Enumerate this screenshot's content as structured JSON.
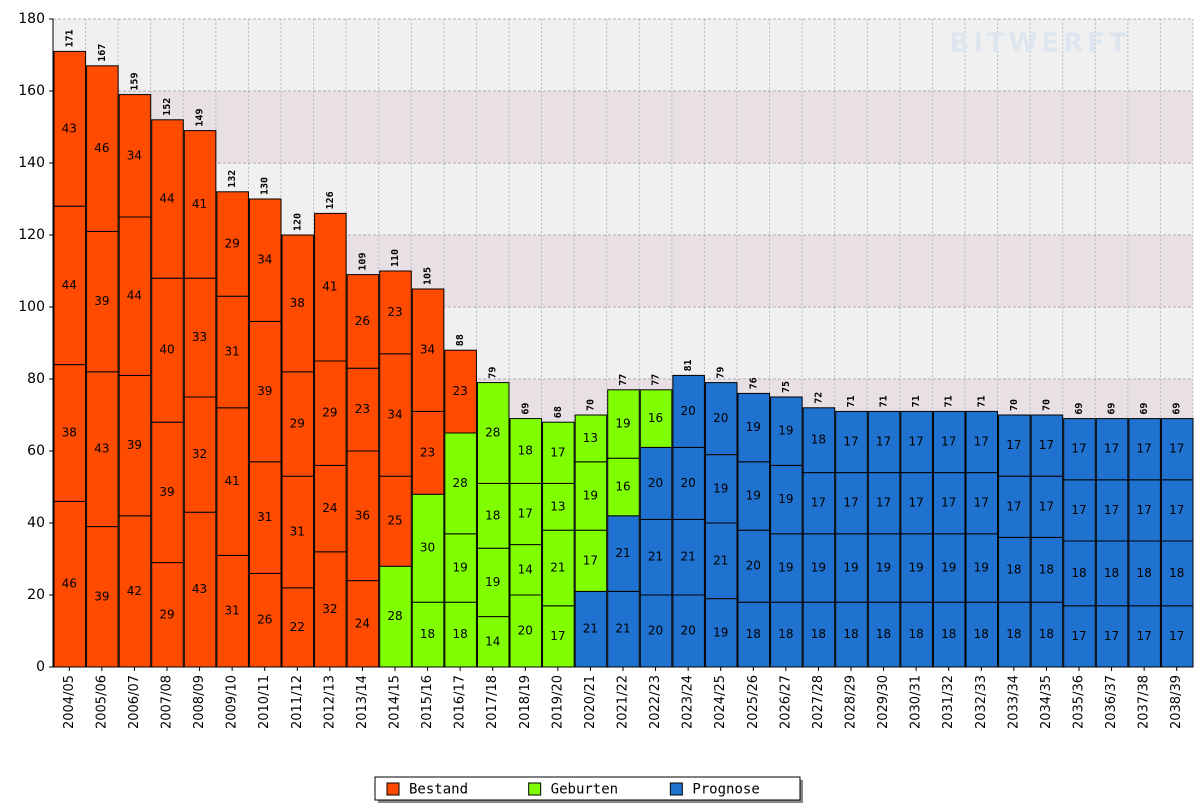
{
  "chart_data": {
    "type": "bar",
    "stacked": true,
    "watermark": "BITWERFT",
    "ylim": [
      0,
      180
    ],
    "yticks": [
      0,
      20,
      40,
      60,
      80,
      100,
      120,
      140,
      160,
      180
    ],
    "grid": true,
    "series": [
      {
        "name": "Bestand",
        "color": "#ff4b00"
      },
      {
        "name": "Geburten",
        "color": "#80ff00"
      },
      {
        "name": "Prognose",
        "color": "#1f72cf"
      }
    ],
    "legend": "bottom",
    "bars": [
      {
        "category": "2004/05",
        "total": 171,
        "segments": [
          {
            "value": 46,
            "series": 0
          },
          {
            "value": 38,
            "series": 0
          },
          {
            "value": 44,
            "series": 0
          },
          {
            "value": 43,
            "series": 0
          }
        ]
      },
      {
        "category": "2005/06",
        "total": 167,
        "segments": [
          {
            "value": 39,
            "series": 0
          },
          {
            "value": 43,
            "series": 0
          },
          {
            "value": 39,
            "series": 0
          },
          {
            "value": 46,
            "series": 0
          }
        ]
      },
      {
        "category": "2006/07",
        "total": 159,
        "segments": [
          {
            "value": 42,
            "series": 0
          },
          {
            "value": 39,
            "series": 0
          },
          {
            "value": 44,
            "series": 0
          },
          {
            "value": 34,
            "series": 0
          }
        ]
      },
      {
        "category": "2007/08",
        "total": 152,
        "segments": [
          {
            "value": 29,
            "series": 0
          },
          {
            "value": 39,
            "series": 0
          },
          {
            "value": 40,
            "series": 0
          },
          {
            "value": 44,
            "series": 0
          }
        ]
      },
      {
        "category": "2008/09",
        "total": 149,
        "segments": [
          {
            "value": 43,
            "series": 0
          },
          {
            "value": 32,
            "series": 0
          },
          {
            "value": 33,
            "series": 0
          },
          {
            "value": 41,
            "series": 0
          }
        ]
      },
      {
        "category": "2009/10",
        "total": 132,
        "segments": [
          {
            "value": 31,
            "series": 0
          },
          {
            "value": 41,
            "series": 0
          },
          {
            "value": 31,
            "series": 0
          },
          {
            "value": 29,
            "series": 0
          }
        ]
      },
      {
        "category": "2010/11",
        "total": 130,
        "segments": [
          {
            "value": 26,
            "series": 0
          },
          {
            "value": 31,
            "series": 0
          },
          {
            "value": 39,
            "series": 0
          },
          {
            "value": 34,
            "series": 0
          }
        ]
      },
      {
        "category": "2011/12",
        "total": 120,
        "segments": [
          {
            "value": 22,
            "series": 0
          },
          {
            "value": 31,
            "series": 0
          },
          {
            "value": 29,
            "series": 0
          },
          {
            "value": 38,
            "series": 0
          }
        ]
      },
      {
        "category": "2012/13",
        "total": 126,
        "segments": [
          {
            "value": 32,
            "series": 0
          },
          {
            "value": 24,
            "series": 0
          },
          {
            "value": 29,
            "series": 0
          },
          {
            "value": 41,
            "series": 0
          }
        ]
      },
      {
        "category": "2013/14",
        "total": 109,
        "segments": [
          {
            "value": 24,
            "series": 0
          },
          {
            "value": 36,
            "series": 0
          },
          {
            "value": 23,
            "series": 0
          },
          {
            "value": 26,
            "series": 0
          }
        ]
      },
      {
        "category": "2014/15",
        "total": 110,
        "segments": [
          {
            "value": 28,
            "series": 1
          },
          {
            "value": 25,
            "series": 0
          },
          {
            "value": 34,
            "series": 0
          },
          {
            "value": 23,
            "series": 0
          }
        ]
      },
      {
        "category": "2015/16",
        "total": 105,
        "segments": [
          {
            "value": 18,
            "series": 1
          },
          {
            "value": 30,
            "series": 1
          },
          {
            "value": 23,
            "series": 0
          },
          {
            "value": 34,
            "series": 0
          }
        ]
      },
      {
        "category": "2016/17",
        "total": 88,
        "segments": [
          {
            "value": 18,
            "series": 1
          },
          {
            "value": 19,
            "series": 1
          },
          {
            "value": 28,
            "series": 1
          },
          {
            "value": 23,
            "series": 0
          }
        ]
      },
      {
        "category": "2017/18",
        "total": 79,
        "segments": [
          {
            "value": 14,
            "series": 1
          },
          {
            "value": 19,
            "series": 1
          },
          {
            "value": 18,
            "series": 1
          },
          {
            "value": 28,
            "series": 1
          }
        ]
      },
      {
        "category": "2018/19",
        "total": 69,
        "segments": [
          {
            "value": 20,
            "series": 1
          },
          {
            "value": 14,
            "series": 1
          },
          {
            "value": 17,
            "series": 1
          },
          {
            "value": 18,
            "series": 1
          }
        ]
      },
      {
        "category": "2019/20",
        "total": 68,
        "segments": [
          {
            "value": 17,
            "series": 1
          },
          {
            "value": 21,
            "series": 1
          },
          {
            "value": 13,
            "series": 1
          },
          {
            "value": 17,
            "series": 1
          }
        ]
      },
      {
        "category": "2020/21",
        "total": 70,
        "segments": [
          {
            "value": 21,
            "series": 2
          },
          {
            "value": 17,
            "series": 1
          },
          {
            "value": 19,
            "series": 1
          },
          {
            "value": 13,
            "series": 1
          }
        ]
      },
      {
        "category": "2021/22",
        "total": 77,
        "segments": [
          {
            "value": 21,
            "series": 2
          },
          {
            "value": 21,
            "series": 2
          },
          {
            "value": 16,
            "series": 1
          },
          {
            "value": 19,
            "series": 1
          }
        ]
      },
      {
        "category": "2022/23",
        "total": 77,
        "segments": [
          {
            "value": 20,
            "series": 2
          },
          {
            "value": 21,
            "series": 2
          },
          {
            "value": 20,
            "series": 2
          },
          {
            "value": 16,
            "series": 1
          }
        ]
      },
      {
        "category": "2023/24",
        "total": 81,
        "segments": [
          {
            "value": 20,
            "series": 2
          },
          {
            "value": 21,
            "series": 2
          },
          {
            "value": 20,
            "series": 2
          },
          {
            "value": 20,
            "series": 2
          }
        ]
      },
      {
        "category": "2024/25",
        "total": 79,
        "segments": [
          {
            "value": 19,
            "series": 2
          },
          {
            "value": 21,
            "series": 2
          },
          {
            "value": 19,
            "series": 2
          },
          {
            "value": 20,
            "series": 2
          }
        ]
      },
      {
        "category": "2025/26",
        "total": 76,
        "segments": [
          {
            "value": 18,
            "series": 2
          },
          {
            "value": 20,
            "series": 2
          },
          {
            "value": 19,
            "series": 2
          },
          {
            "value": 19,
            "series": 2
          }
        ]
      },
      {
        "category": "2026/27",
        "total": 75,
        "segments": [
          {
            "value": 18,
            "series": 2
          },
          {
            "value": 19,
            "series": 2
          },
          {
            "value": 19,
            "series": 2
          },
          {
            "value": 19,
            "series": 2
          }
        ]
      },
      {
        "category": "2027/28",
        "total": 72,
        "segments": [
          {
            "value": 18,
            "series": 2
          },
          {
            "value": 19,
            "series": 2
          },
          {
            "value": 17,
            "series": 2
          },
          {
            "value": 18,
            "series": 2
          }
        ]
      },
      {
        "category": "2028/29",
        "total": 71,
        "segments": [
          {
            "value": 18,
            "series": 2
          },
          {
            "value": 19,
            "series": 2
          },
          {
            "value": 17,
            "series": 2
          },
          {
            "value": 17,
            "series": 2
          }
        ]
      },
      {
        "category": "2029/30",
        "total": 71,
        "segments": [
          {
            "value": 18,
            "series": 2
          },
          {
            "value": 19,
            "series": 2
          },
          {
            "value": 17,
            "series": 2
          },
          {
            "value": 17,
            "series": 2
          }
        ]
      },
      {
        "category": "2030/31",
        "total": 71,
        "segments": [
          {
            "value": 18,
            "series": 2
          },
          {
            "value": 19,
            "series": 2
          },
          {
            "value": 17,
            "series": 2
          },
          {
            "value": 17,
            "series": 2
          }
        ]
      },
      {
        "category": "2031/32",
        "total": 71,
        "segments": [
          {
            "value": 18,
            "series": 2
          },
          {
            "value": 19,
            "series": 2
          },
          {
            "value": 17,
            "series": 2
          },
          {
            "value": 17,
            "series": 2
          }
        ]
      },
      {
        "category": "2032/33",
        "total": 71,
        "segments": [
          {
            "value": 18,
            "series": 2
          },
          {
            "value": 19,
            "series": 2
          },
          {
            "value": 17,
            "series": 2
          },
          {
            "value": 17,
            "series": 2
          }
        ]
      },
      {
        "category": "2033/34",
        "total": 70,
        "segments": [
          {
            "value": 18,
            "series": 2
          },
          {
            "value": 18,
            "series": 2
          },
          {
            "value": 17,
            "series": 2
          },
          {
            "value": 17,
            "series": 2
          }
        ]
      },
      {
        "category": "2034/35",
        "total": 70,
        "segments": [
          {
            "value": 18,
            "series": 2
          },
          {
            "value": 18,
            "series": 2
          },
          {
            "value": 17,
            "series": 2
          },
          {
            "value": 17,
            "series": 2
          }
        ]
      },
      {
        "category": "2035/36",
        "total": 69,
        "segments": [
          {
            "value": 17,
            "series": 2
          },
          {
            "value": 18,
            "series": 2
          },
          {
            "value": 17,
            "series": 2
          },
          {
            "value": 17,
            "series": 2
          }
        ]
      },
      {
        "category": "2036/37",
        "total": 69,
        "segments": [
          {
            "value": 17,
            "series": 2
          },
          {
            "value": 18,
            "series": 2
          },
          {
            "value": 17,
            "series": 2
          },
          {
            "value": 17,
            "series": 2
          }
        ]
      },
      {
        "category": "2037/38",
        "total": 69,
        "segments": [
          {
            "value": 17,
            "series": 2
          },
          {
            "value": 18,
            "series": 2
          },
          {
            "value": 17,
            "series": 2
          },
          {
            "value": 17,
            "series": 2
          }
        ]
      },
      {
        "category": "2038/39",
        "total": 69,
        "segments": [
          {
            "value": 17,
            "series": 2
          },
          {
            "value": 18,
            "series": 2
          },
          {
            "value": 17,
            "series": 2
          },
          {
            "value": 17,
            "series": 2
          }
        ]
      }
    ]
  }
}
